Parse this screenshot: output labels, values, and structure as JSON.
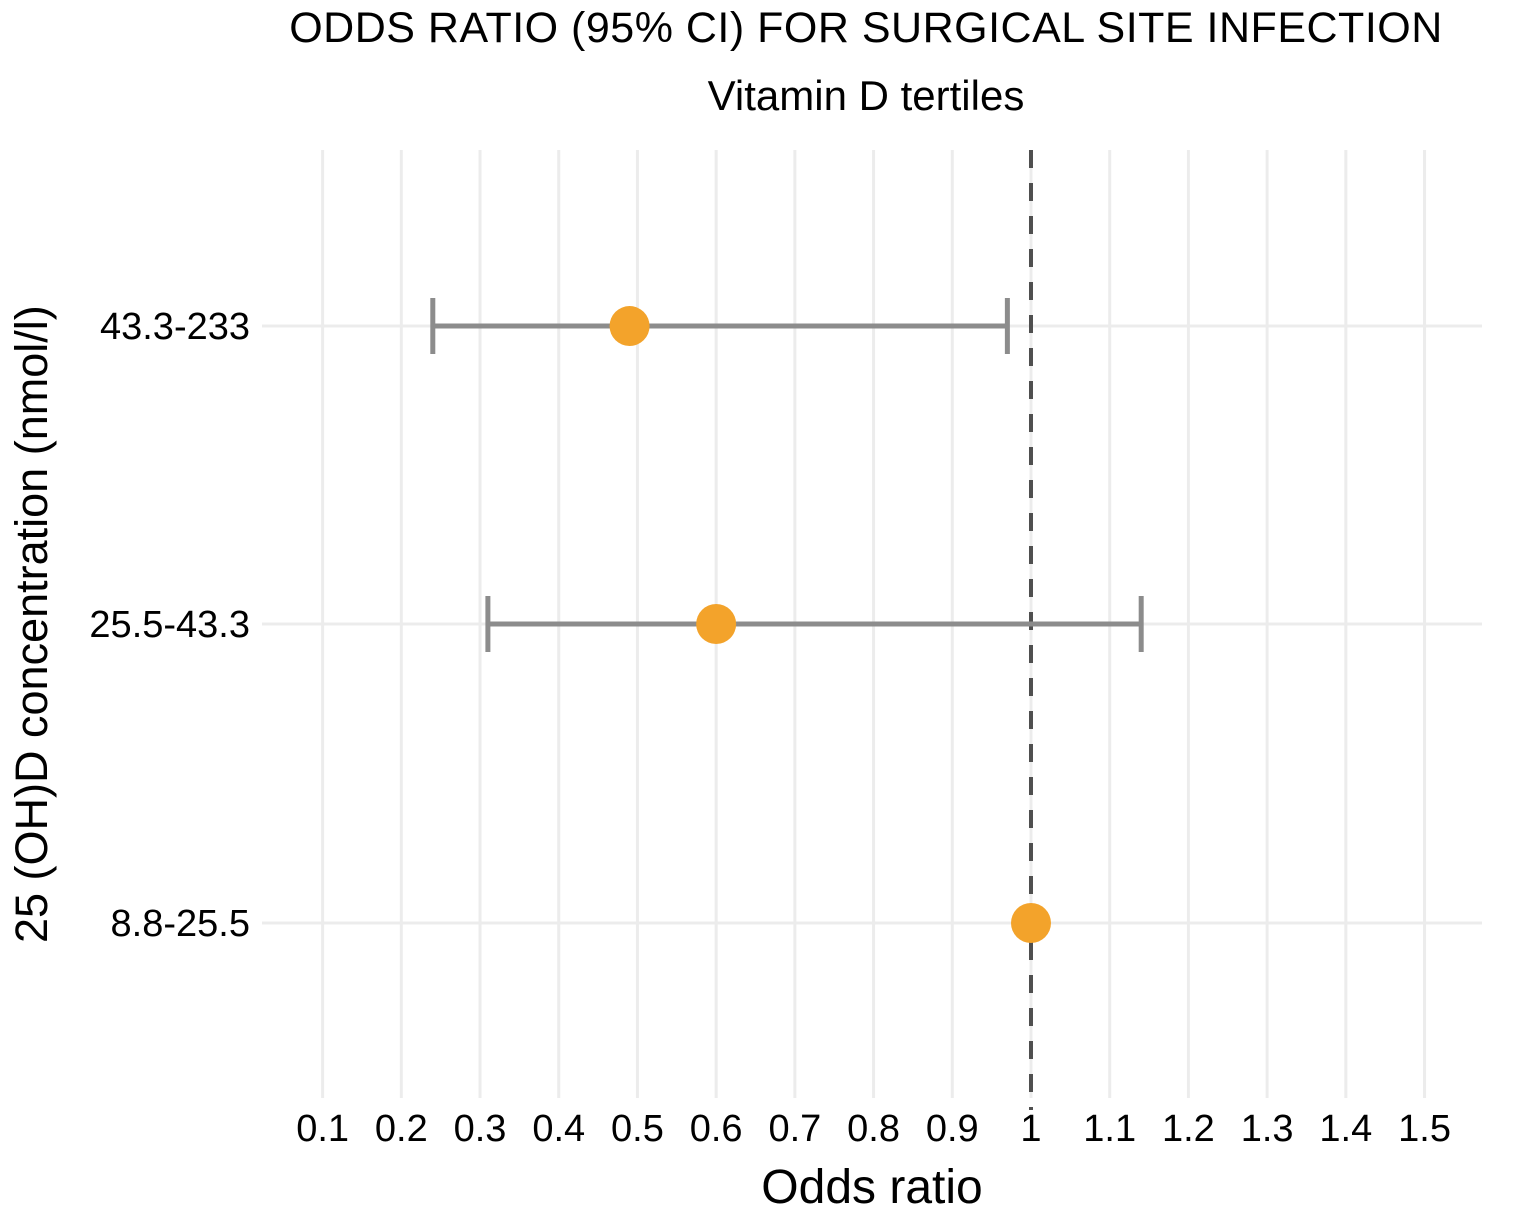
{
  "page": {
    "background": "#ffffff"
  },
  "chart_data": {
    "type": "scatter",
    "variant": "forest-plot",
    "title": "ODDS RATIO (95% CI) FOR SURGICAL SITE INFECTION",
    "subtitle": "Vitamin D tertiles",
    "xlabel": "Odds ratio",
    "ylabel": "25 (OH)D concentration (nmol/l)",
    "legend": "none",
    "grid": "major-x-gridlines and one-gridline-per-category-row",
    "xlim": [
      0.023,
      1.573
    ],
    "x_ticks": [
      0.1,
      0.2,
      0.3,
      0.4,
      0.5,
      0.6,
      0.7,
      0.8,
      0.9,
      1,
      1.1,
      1.2,
      1.3,
      1.4,
      1.5
    ],
    "x_tick_labels": [
      "0.1",
      "0.2",
      "0.3",
      "0.4",
      "0.5",
      "0.6",
      "0.7",
      "0.8",
      "0.9",
      "1",
      "1.1",
      "1.2",
      "1.3",
      "1.4",
      "1.5"
    ],
    "reference_line": {
      "x": 1,
      "style": "dashed"
    },
    "categories": [
      "43.3-233",
      "25.5-43.3",
      "8.8-25.5"
    ],
    "series": [
      {
        "name": "Odds ratio (95% CI)",
        "points": [
          {
            "tertile": "43.3-233",
            "or": 0.49,
            "ci_low": 0.24,
            "ci_high": 0.97
          },
          {
            "tertile": "25.5-43.3",
            "or": 0.6,
            "ci_low": 0.31,
            "ci_high": 1.14
          },
          {
            "tertile": "8.8-25.5",
            "or": 1.0,
            "ci_low": null,
            "ci_high": null
          }
        ]
      }
    ],
    "colors": {
      "point": "#F3A32B",
      "error_bar": "#8C8C8C",
      "reference_line": "#4F4F4F",
      "gridline": "#ECECEC",
      "text": "#000000"
    }
  }
}
